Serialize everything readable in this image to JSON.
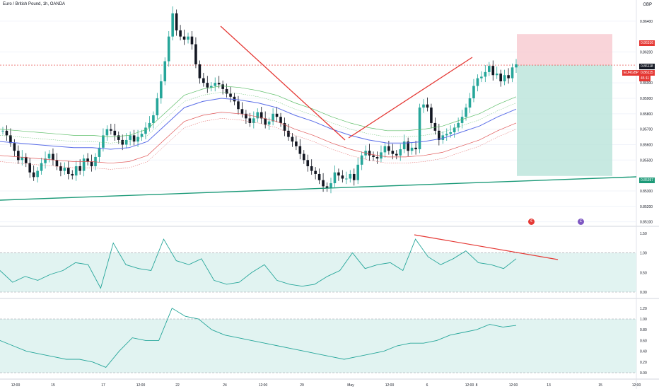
{
  "header": {
    "title": "Euro / British Pound, 1h, OANDA",
    "currency": "GBP"
  },
  "colors": {
    "up": "#26a69a",
    "down": "#131722",
    "trend_red": "#e53935",
    "trend_green": "#1c9a78",
    "stop_zone": "#f8c9cf",
    "target_zone": "#b9e4da",
    "osc_band": "#e1f3f1",
    "sma_blue": "#5b6ee8",
    "sma_green": "#5fbf6a",
    "sma_red": "#e05555"
  },
  "price_axis": {
    "ticks": [
      "0.86400",
      "0.86200",
      "0.86000",
      "0.85900",
      "0.85800",
      "0.85700",
      "0.85600",
      "0.85500",
      "0.85300",
      "0.85200",
      "0.85100"
    ],
    "labels": {
      "stop": "0.86316",
      "last_top": "0.86118",
      "symbol": "EURGBP",
      "last": "0.86115",
      "countdown": "45:11",
      "target": "0.85397"
    }
  },
  "osc1_axis": {
    "ticks": [
      "1.50",
      "1.00",
      "0.50",
      "0.00"
    ]
  },
  "osc2_axis": {
    "ticks": [
      "1.20",
      "1.00",
      "0.80",
      "0.60",
      "0.40",
      "0.20",
      "0.00"
    ]
  },
  "time_axis": [
    "12:00",
    "15",
    "17",
    "12:00",
    "22",
    "24",
    "12:00",
    "29",
    "May",
    "12:00",
    "6",
    "12:00",
    "8",
    "12:00",
    "13",
    "15",
    "12:00"
  ],
  "icons": [
    "calendar-event-icon",
    "earnings-icon"
  ],
  "chart_data": {
    "type": "candlestick",
    "series": [
      {
        "name": "EURGBP 1h",
        "values": [
          0.8569,
          0.8566,
          0.8561,
          0.8556,
          0.855,
          0.8552,
          0.8548,
          0.8542,
          0.8539,
          0.8543,
          0.8548,
          0.8551,
          0.8554,
          0.855,
          0.8546,
          0.8543,
          0.8545,
          0.8541,
          0.854,
          0.8546,
          0.8543,
          0.8551,
          0.8549,
          0.8546,
          0.8552,
          0.8558,
          0.8566,
          0.857,
          0.8569,
          0.8566,
          0.8563,
          0.856,
          0.8563,
          0.8566,
          0.8562,
          0.8565,
          0.8567,
          0.8571,
          0.8574,
          0.8579,
          0.859,
          0.8601,
          0.8614,
          0.863,
          0.8645,
          0.8634,
          0.863,
          0.8628,
          0.863,
          0.8625,
          0.8612,
          0.8603,
          0.86,
          0.8597,
          0.8598,
          0.86,
          0.8599,
          0.8596,
          0.8593,
          0.8591,
          0.8588,
          0.8583,
          0.858,
          0.8577,
          0.8574,
          0.8577,
          0.8581,
          0.8577,
          0.8573,
          0.8575,
          0.858,
          0.8578,
          0.8574,
          0.8569,
          0.8565,
          0.8562,
          0.8559,
          0.8554,
          0.855,
          0.8546,
          0.8543,
          0.8541,
          0.8537,
          0.8533,
          0.8532,
          0.8535,
          0.8542,
          0.854,
          0.8538,
          0.8538,
          0.8541,
          0.8537,
          0.8547,
          0.8553,
          0.8556,
          0.8553,
          0.8552,
          0.8551,
          0.8555,
          0.8559,
          0.8556,
          0.8554,
          0.8553,
          0.8557,
          0.8562,
          0.8556,
          0.8558,
          0.8557,
          0.8584,
          0.8586,
          0.8584,
          0.8574,
          0.8569,
          0.8563,
          0.8566,
          0.8567,
          0.8568,
          0.8571,
          0.8574,
          0.8578,
          0.8584,
          0.859,
          0.8598,
          0.8603,
          0.8604,
          0.8607,
          0.8611,
          0.8605,
          0.8606,
          0.8601,
          0.8605,
          0.8603,
          0.861,
          0.8612
        ]
      }
    ],
    "indicators": {
      "sma_blue": {
        "values": [
          0.8562,
          0.8561,
          0.856,
          0.8559,
          0.8558,
          0.8558,
          0.8557,
          0.8558,
          0.8562,
          0.8573,
          0.8584,
          0.8588,
          0.859,
          0.8589,
          0.8587,
          0.8584,
          0.8579,
          0.8575,
          0.857,
          0.8566,
          0.8563,
          0.8561,
          0.8561,
          0.8562,
          0.8564,
          0.8568,
          0.8572,
          0.8578,
          0.8583
        ]
      },
      "oscillator_1": {
        "values": [
          0.55,
          0.25,
          0.4,
          0.3,
          0.45,
          0.55,
          0.75,
          0.7,
          0.1,
          1.25,
          0.7,
          0.6,
          0.55,
          1.35,
          0.8,
          0.7,
          0.85,
          0.3,
          0.2,
          0.25,
          0.5,
          0.7,
          0.3,
          0.2,
          0.15,
          0.2,
          0.4,
          0.55,
          1.0,
          0.6,
          0.7,
          0.75,
          0.55,
          1.35,
          0.9,
          0.7,
          0.85,
          1.05,
          0.75,
          0.7,
          0.6,
          0.85
        ]
      },
      "oscillator_2": {
        "values": [
          0.6,
          0.5,
          0.4,
          0.35,
          0.3,
          0.25,
          0.25,
          0.2,
          0.1,
          0.4,
          0.65,
          0.6,
          0.6,
          1.2,
          1.05,
          1.0,
          0.8,
          0.7,
          0.65,
          0.6,
          0.55,
          0.5,
          0.45,
          0.4,
          0.35,
          0.3,
          0.25,
          0.3,
          0.35,
          0.4,
          0.5,
          0.55,
          0.55,
          0.6,
          0.7,
          0.75,
          0.8,
          0.9,
          0.85,
          0.88
        ]
      }
    },
    "trend_lines": [
      {
        "name": "descending-trend",
        "from": [
          "22 12:00",
          0.8642
        ],
        "to": [
          "29 12:00",
          0.8574
        ]
      },
      {
        "name": "ascending-trend",
        "from": [
          "29 18:00",
          0.8575
        ],
        "to": [
          "8 00:00",
          0.8622
        ]
      },
      {
        "name": "support-line",
        "from": [
          "12 00:00",
          0.8528
        ],
        "to": [
          "16 00:00",
          0.854
        ]
      }
    ],
    "position": {
      "type": "short",
      "entry": 0.86115,
      "stop": 0.86316,
      "target": 0.85397
    },
    "xlabel": "",
    "ylabel": "",
    "grid": true
  }
}
